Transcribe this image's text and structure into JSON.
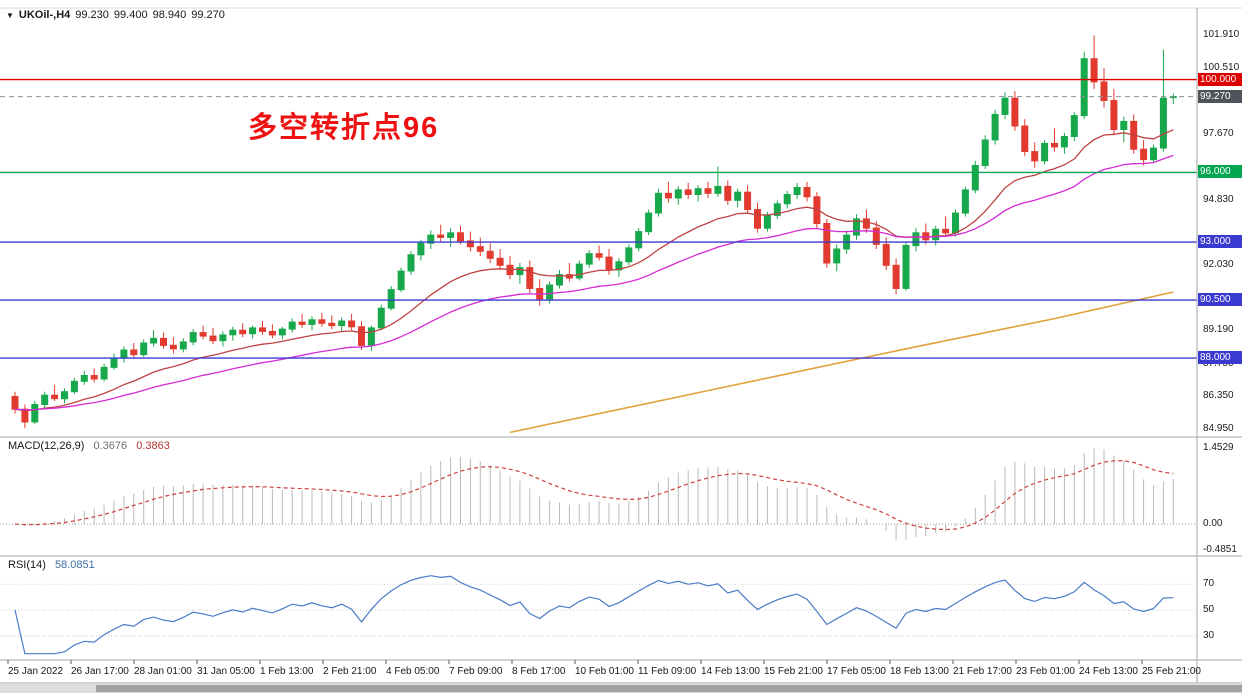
{
  "header": {
    "marker": "▼",
    "symbol_label": "UKOil-,H4"
  },
  "colors": {
    "up": "#18a84c",
    "down": "#e23a2e",
    "ma_red": "#c04343",
    "ma_magenta": "#d52bd5",
    "ma_orange": "#e2a13c",
    "hline_red": "#dd0000",
    "hline_green": "#00a650",
    "hline_blue": "#3a3ad0",
    "current_price_tag": "#4e545c",
    "macd_hist": "#b9b9b9",
    "macd_signal": "#cf4040",
    "rsi_line": "#4a7cc7"
  },
  "chart_data": {
    "type": "candlestick",
    "symbol_label": "UKOil-,H4",
    "timeframe": "H4",
    "ohlc_display": {
      "open": "99.230",
      "high": "99.400",
      "low": "98.940",
      "close": "99.270"
    },
    "annotation": {
      "text": "多空转折点96",
      "color": "#ee1111"
    },
    "ranges": {
      "price": [
        84.6,
        103.0
      ],
      "macd": [
        -0.55,
        1.6
      ],
      "rsi": [
        15,
        85
      ]
    },
    "price_axis_labels": [
      101.91,
      100.51,
      97.67,
      94.83,
      92.03,
      89.19,
      87.75,
      86.35,
      84.95
    ],
    "horizontal_lines": [
      {
        "price": 100.0,
        "label": "100.000",
        "color_key": "hline_red"
      },
      {
        "price": 96.0,
        "label": "96.000",
        "color_key": "hline_green"
      },
      {
        "price": 93.0,
        "label": "93.000",
        "color_key": "hline_blue"
      },
      {
        "price": 90.5,
        "label": "90.500",
        "color_key": "hline_blue"
      },
      {
        "price": 88.0,
        "label": "88.000",
        "color_key": "hline_blue"
      }
    ],
    "current_price": {
      "price": 99.27,
      "label": "99.270"
    },
    "moving_averages": {
      "red_period": 16,
      "magenta_period": 34,
      "orange_line_points": [
        [
          50,
          84.8
        ],
        [
          70,
          86.6
        ],
        [
          90,
          88.4
        ],
        [
          105,
          89.7
        ],
        [
          117,
          90.85
        ]
      ]
    },
    "macd": {
      "label": "MACD(12,26,9)",
      "macd_value": "0.3676",
      "signal_value": "0.3863",
      "fast": 12,
      "slow": 26,
      "signal": 9,
      "axis_labels": [
        {
          "value": 1.4529,
          "text": "1.4529"
        },
        {
          "value": 0,
          "text": "0.00"
        },
        {
          "value": -0.4851,
          "text": "-0.4851"
        }
      ]
    },
    "rsi": {
      "label": "RSI(14)",
      "value": "58.0851",
      "period": 14,
      "levels": [
        70,
        50,
        30
      ]
    },
    "time_labels": [
      "25 Jan 2022",
      "26 Jan 17:00",
      "28 Jan 01:00",
      "31 Jan 05:00",
      "1 Feb 13:00",
      "2 Feb 21:00",
      "4 Feb 05:00",
      "7 Feb 09:00",
      "8 Feb 17:00",
      "10 Feb 01:00",
      "11 Feb 09:00",
      "14 Feb 13:00",
      "15 Feb 21:00",
      "17 Feb 05:00",
      "18 Feb 13:00",
      "21 Feb 17:00",
      "23 Feb 01:00",
      "24 Feb 13:00",
      "25 Feb 21:00"
    ],
    "candles": [
      [
        86.35,
        86.55,
        85.6,
        85.8
      ],
      [
        85.8,
        86.0,
        84.98,
        85.25
      ],
      [
        85.25,
        86.15,
        85.15,
        86.0
      ],
      [
        86.0,
        86.55,
        85.85,
        86.4
      ],
      [
        86.4,
        86.85,
        86.15,
        86.25
      ],
      [
        86.25,
        86.7,
        86.05,
        86.55
      ],
      [
        86.55,
        87.15,
        86.45,
        87.0
      ],
      [
        87.0,
        87.45,
        86.85,
        87.25
      ],
      [
        87.25,
        87.55,
        86.95,
        87.1
      ],
      [
        87.1,
        87.75,
        87.0,
        87.6
      ],
      [
        87.6,
        88.2,
        87.5,
        88.0
      ],
      [
        88.0,
        88.5,
        87.8,
        88.35
      ],
      [
        88.35,
        88.65,
        88.0,
        88.15
      ],
      [
        88.15,
        88.8,
        88.05,
        88.65
      ],
      [
        88.65,
        89.2,
        88.5,
        88.85
      ],
      [
        88.85,
        89.1,
        88.4,
        88.55
      ],
      [
        88.55,
        88.9,
        88.2,
        88.4
      ],
      [
        88.4,
        88.85,
        88.25,
        88.7
      ],
      [
        88.7,
        89.25,
        88.55,
        89.1
      ],
      [
        89.1,
        89.4,
        88.8,
        88.95
      ],
      [
        88.95,
        89.3,
        88.6,
        88.75
      ],
      [
        88.75,
        89.15,
        88.5,
        89.0
      ],
      [
        89.0,
        89.35,
        88.75,
        89.2
      ],
      [
        89.2,
        89.5,
        88.9,
        89.05
      ],
      [
        89.05,
        89.4,
        88.85,
        89.3
      ],
      [
        89.3,
        89.6,
        89.0,
        89.15
      ],
      [
        89.15,
        89.45,
        88.85,
        89.0
      ],
      [
        89.0,
        89.35,
        88.8,
        89.25
      ],
      [
        89.25,
        89.7,
        89.1,
        89.55
      ],
      [
        89.55,
        89.9,
        89.3,
        89.45
      ],
      [
        89.45,
        89.8,
        89.2,
        89.65
      ],
      [
        89.65,
        89.95,
        89.35,
        89.5
      ],
      [
        89.5,
        89.85,
        89.25,
        89.4
      ],
      [
        89.4,
        89.75,
        89.15,
        89.6
      ],
      [
        89.6,
        89.9,
        89.2,
        89.35
      ],
      [
        89.35,
        89.6,
        88.35,
        88.55
      ],
      [
        88.55,
        89.4,
        88.3,
        89.3
      ],
      [
        89.3,
        90.3,
        89.2,
        90.15
      ],
      [
        90.15,
        91.1,
        90.05,
        90.95
      ],
      [
        90.95,
        91.9,
        90.85,
        91.75
      ],
      [
        91.75,
        92.6,
        91.6,
        92.45
      ],
      [
        92.45,
        93.1,
        92.2,
        92.95
      ],
      [
        92.95,
        93.5,
        92.7,
        93.3
      ],
      [
        93.3,
        93.75,
        93.0,
        93.2
      ],
      [
        93.2,
        93.6,
        92.8,
        93.4
      ],
      [
        93.4,
        93.7,
        92.9,
        93.05
      ],
      [
        93.05,
        93.45,
        92.6,
        92.8
      ],
      [
        92.8,
        93.2,
        92.4,
        92.6
      ],
      [
        92.6,
        92.95,
        92.1,
        92.3
      ],
      [
        92.3,
        92.7,
        91.8,
        92.0
      ],
      [
        92.0,
        92.4,
        91.4,
        91.6
      ],
      [
        91.6,
        92.1,
        91.2,
        91.9
      ],
      [
        91.9,
        92.2,
        90.8,
        91.0
      ],
      [
        91.0,
        91.4,
        90.25,
        90.55
      ],
      [
        90.55,
        91.3,
        90.35,
        91.15
      ],
      [
        91.15,
        91.8,
        91.0,
        91.6
      ],
      [
        91.6,
        92.1,
        91.3,
        91.45
      ],
      [
        91.45,
        92.2,
        91.35,
        92.05
      ],
      [
        92.05,
        92.65,
        91.9,
        92.5
      ],
      [
        92.5,
        92.85,
        92.2,
        92.35
      ],
      [
        92.35,
        92.7,
        91.6,
        91.8
      ],
      [
        91.8,
        92.3,
        91.5,
        92.15
      ],
      [
        92.15,
        92.9,
        92.0,
        92.75
      ],
      [
        92.75,
        93.6,
        92.6,
        93.45
      ],
      [
        93.45,
        94.4,
        93.3,
        94.25
      ],
      [
        94.25,
        95.3,
        94.1,
        95.1
      ],
      [
        95.1,
        95.6,
        94.7,
        94.9
      ],
      [
        94.9,
        95.4,
        94.6,
        95.25
      ],
      [
        95.25,
        95.55,
        94.85,
        95.05
      ],
      [
        95.05,
        95.45,
        94.75,
        95.3
      ],
      [
        95.3,
        95.6,
        94.9,
        95.1
      ],
      [
        95.1,
        96.25,
        94.95,
        95.4
      ],
      [
        95.4,
        95.65,
        94.6,
        94.8
      ],
      [
        94.8,
        95.3,
        94.5,
        95.15
      ],
      [
        95.15,
        95.45,
        94.2,
        94.4
      ],
      [
        94.4,
        94.7,
        93.4,
        93.6
      ],
      [
        93.6,
        94.3,
        93.45,
        94.15
      ],
      [
        94.15,
        94.8,
        94.0,
        94.65
      ],
      [
        94.65,
        95.2,
        94.45,
        95.05
      ],
      [
        95.05,
        95.55,
        94.85,
        95.35
      ],
      [
        95.35,
        95.6,
        94.75,
        94.95
      ],
      [
        94.95,
        95.15,
        93.6,
        93.8
      ],
      [
        93.8,
        94.0,
        91.9,
        92.1
      ],
      [
        92.1,
        92.9,
        91.75,
        92.7
      ],
      [
        92.7,
        93.5,
        92.5,
        93.3
      ],
      [
        93.3,
        94.2,
        93.1,
        94.0
      ],
      [
        94.0,
        94.4,
        93.4,
        93.6
      ],
      [
        93.6,
        93.9,
        92.7,
        92.9
      ],
      [
        92.9,
        93.2,
        91.8,
        92.0
      ],
      [
        92.0,
        92.3,
        90.75,
        91.0
      ],
      [
        91.0,
        93.0,
        90.9,
        92.85
      ],
      [
        92.85,
        93.6,
        92.6,
        93.4
      ],
      [
        93.4,
        93.8,
        92.9,
        93.1
      ],
      [
        93.1,
        93.7,
        92.85,
        93.55
      ],
      [
        93.55,
        94.1,
        93.3,
        93.4
      ],
      [
        93.4,
        94.4,
        93.25,
        94.25
      ],
      [
        94.25,
        95.4,
        94.1,
        95.25
      ],
      [
        95.25,
        96.5,
        95.1,
        96.3
      ],
      [
        96.3,
        97.6,
        96.15,
        97.4
      ],
      [
        97.4,
        98.7,
        97.2,
        98.5
      ],
      [
        98.5,
        99.45,
        98.3,
        99.2
      ],
      [
        99.2,
        99.5,
        97.8,
        98.0
      ],
      [
        98.0,
        98.3,
        96.7,
        96.9
      ],
      [
        96.9,
        97.3,
        96.2,
        96.5
      ],
      [
        96.5,
        97.4,
        96.35,
        97.25
      ],
      [
        97.25,
        97.9,
        96.9,
        97.1
      ],
      [
        97.1,
        97.7,
        96.8,
        97.55
      ],
      [
        97.55,
        98.6,
        97.35,
        98.45
      ],
      [
        98.45,
        101.2,
        98.3,
        100.9
      ],
      [
        100.9,
        101.91,
        99.6,
        99.9
      ],
      [
        99.9,
        100.5,
        98.8,
        99.1
      ],
      [
        99.1,
        99.6,
        97.6,
        97.85
      ],
      [
        97.85,
        98.4,
        97.3,
        98.2
      ],
      [
        98.2,
        98.5,
        96.8,
        97.0
      ],
      [
        97.0,
        97.4,
        96.3,
        96.55
      ],
      [
        96.55,
        97.2,
        96.4,
        97.05
      ],
      [
        97.05,
        101.3,
        96.9,
        99.2
      ],
      [
        99.23,
        99.4,
        98.94,
        99.27
      ]
    ]
  }
}
